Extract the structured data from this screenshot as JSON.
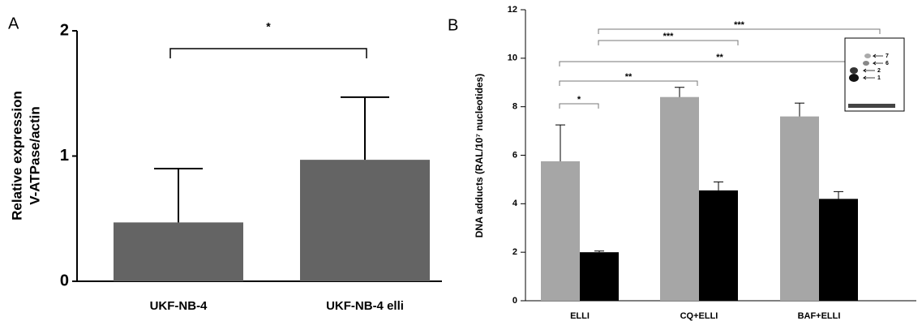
{
  "chart_data": [
    {
      "type": "bar",
      "panel": "A",
      "ylabel": [
        "Relative expression",
        "V-ATPase/actin"
      ],
      "categories": [
        "UKF-NB-4",
        "UKF-NB-4 elli"
      ],
      "series": [
        {
          "color": "#646464",
          "values": [
            0.47,
            0.97
          ],
          "errors": [
            0.43,
            0.5
          ]
        }
      ],
      "ylim": [
        0,
        2
      ],
      "yticks": [
        0,
        1,
        2
      ],
      "annotations": [
        "*"
      ]
    },
    {
      "type": "bar",
      "panel": "B",
      "ylabel": "DNA adducts (RAL/10⁷ nucleotides)",
      "categories": [
        "ELLI",
        "CQ+ELLI",
        "BAF+ELLI"
      ],
      "series": [
        {
          "color": "#a6a6a6",
          "values": [
            5.75,
            8.4,
            7.6
          ],
          "errors": [
            1.5,
            0.4,
            0.55
          ]
        },
        {
          "color": "#000000",
          "values": [
            2.0,
            4.55,
            4.2
          ],
          "errors": [
            0.05,
            0.35,
            0.3
          ]
        }
      ],
      "ylim": [
        0,
        12
      ],
      "yticks": [
        0,
        2,
        4,
        6,
        8,
        10,
        12
      ],
      "annotations": [
        "*",
        "**",
        "**",
        "***",
        "***"
      ],
      "inset_labels": [
        "7",
        "6",
        "2",
        "1"
      ]
    }
  ]
}
